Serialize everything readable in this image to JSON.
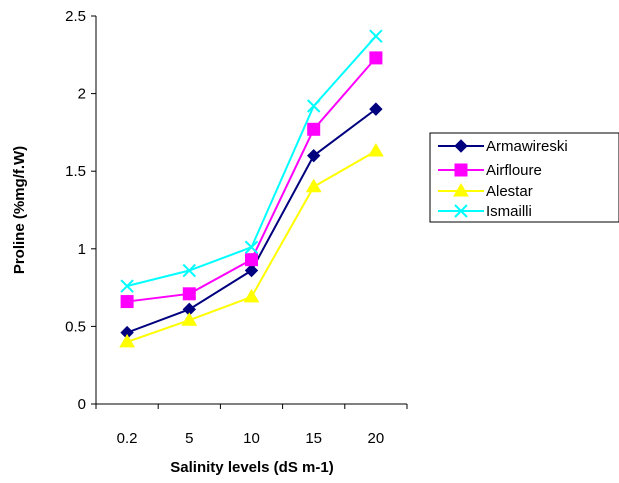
{
  "chart_data": {
    "type": "line",
    "title": "",
    "xlabel": "Salinity levels (dS m-1)",
    "ylabel": "Proline (%mg/f.W)",
    "categories": [
      "0.2",
      "5",
      "10",
      "15",
      "20"
    ],
    "ylim": [
      0,
      2.5
    ],
    "yticks": [
      "0",
      "0.5",
      "1",
      "1.5",
      "2",
      "2.5"
    ],
    "grid": false,
    "legend_position": "right",
    "series": [
      {
        "name": "Armawireski",
        "values": [
          0.46,
          0.61,
          0.86,
          1.6,
          1.9
        ],
        "color": "#00007f",
        "marker": "diamond"
      },
      {
        "name": "Airfloure",
        "values": [
          0.66,
          0.71,
          0.93,
          1.77,
          2.23
        ],
        "color": "#ff00ff",
        "marker": "square"
      },
      {
        "name": "Alestar",
        "values": [
          0.4,
          0.54,
          0.69,
          1.4,
          1.63
        ],
        "color": "#ffff00",
        "marker": "triangle"
      },
      {
        "name": "Ismailli",
        "values": [
          0.76,
          0.86,
          1.01,
          1.92,
          2.37
        ],
        "color": "#00ffff",
        "marker": "x"
      }
    ]
  }
}
